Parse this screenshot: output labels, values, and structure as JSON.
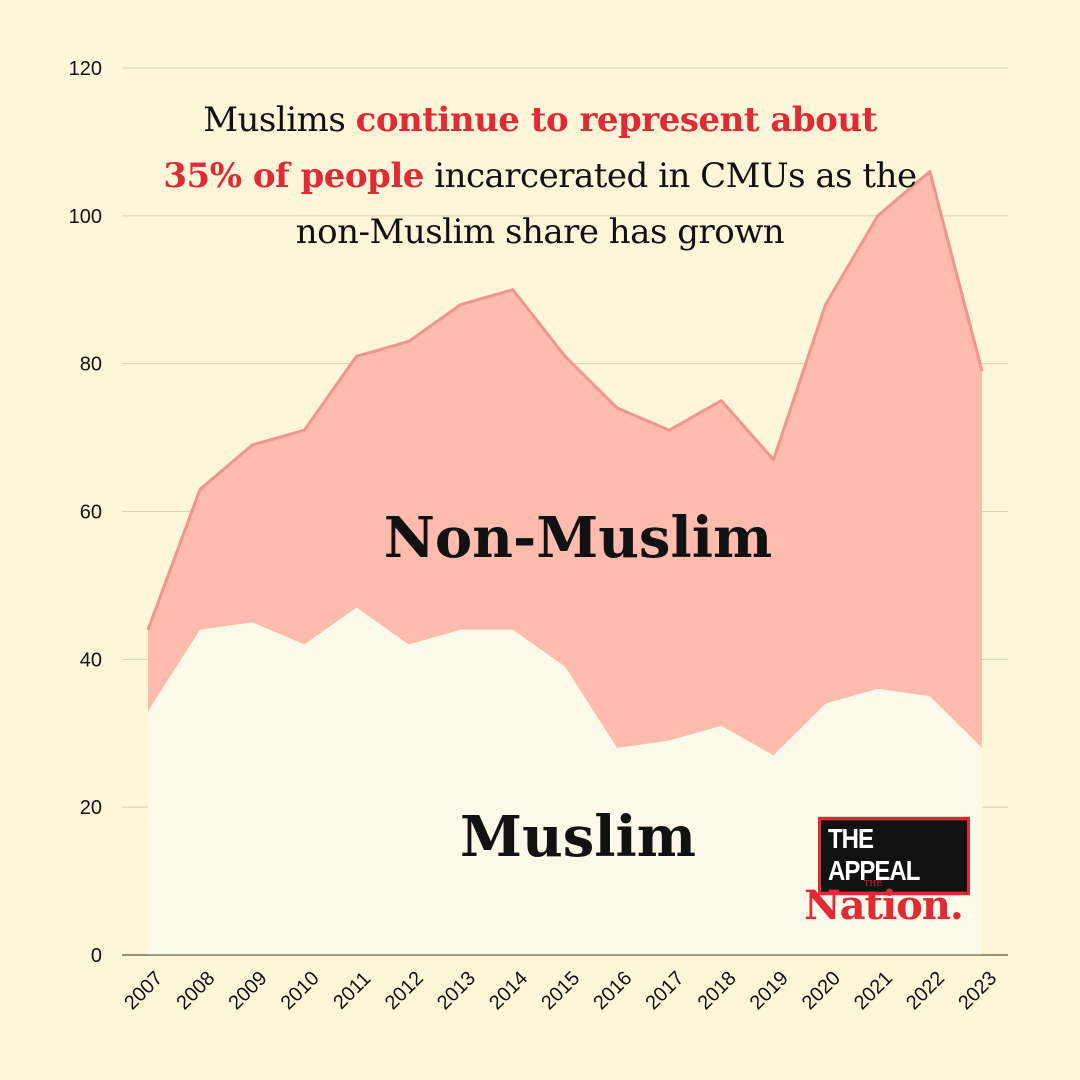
{
  "headline": {
    "part1": "Muslims ",
    "highlight1": "continue to represent about",
    "highlight2": "35% of people",
    "part2": " incarcerated in CMUs as the non-Muslim share has grown"
  },
  "logos": {
    "appeal": "THE APPEAL",
    "nation_small": "THE",
    "nation": "Nation."
  },
  "colors": {
    "background": "#fdf6d8",
    "muslim_fill": "#fdfaea",
    "non_muslim_fill": "#ffbcae",
    "non_muslim_line": "#f29490",
    "accent": "#e02b36"
  },
  "chart_data": {
    "type": "area",
    "stacked": true,
    "x": [
      "2007",
      "2008",
      "2009",
      "2010",
      "2011",
      "2012",
      "2013",
      "2014",
      "2015",
      "2016",
      "2017",
      "2018",
      "2019",
      "2020",
      "2021",
      "2022",
      "2023"
    ],
    "series": [
      {
        "name": "Muslim",
        "values": [
          33,
          44,
          45,
          42,
          47,
          42,
          44,
          44,
          39,
          28,
          29,
          31,
          27,
          34,
          36,
          35,
          28
        ]
      },
      {
        "name": "Non-Muslim",
        "values": [
          11,
          19,
          24,
          29,
          34,
          41,
          44,
          46,
          42,
          46,
          42,
          44,
          40,
          54,
          64,
          71,
          51
        ]
      }
    ],
    "totals": [
      44,
      63,
      69,
      71,
      81,
      83,
      88,
      90,
      81,
      74,
      71,
      75,
      67,
      88,
      100,
      106,
      79
    ],
    "ylim": [
      0,
      120
    ],
    "yticks": [
      0,
      20,
      40,
      60,
      80,
      100,
      120
    ],
    "grid": true,
    "legend": "inline labels",
    "xlabel": "",
    "ylabel": ""
  }
}
